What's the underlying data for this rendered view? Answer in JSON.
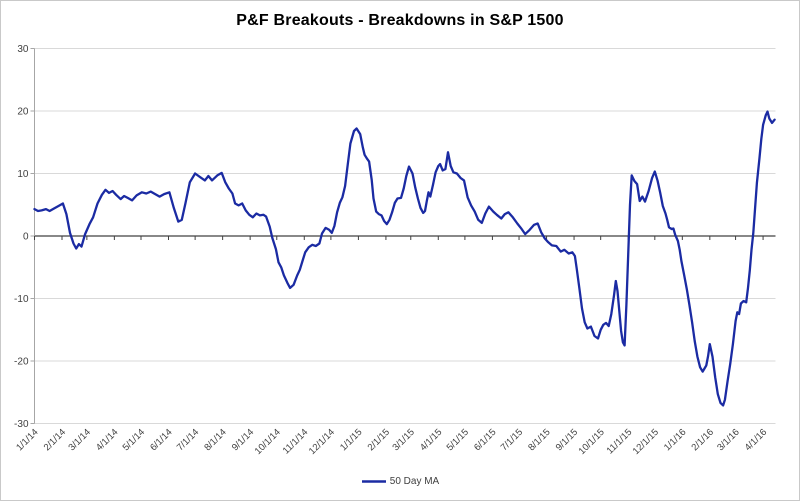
{
  "window": {
    "title": "P&F Breakouts - Breakdowns in S&P 1500"
  },
  "colors": {
    "series_line": "#1B2BA3",
    "gridline": "#D9D9D9",
    "zero_axis": "#404040",
    "axis_line": "#A6A6A6",
    "label_text": "#404040",
    "background": "#FFFFFF",
    "border": "#C9C9C9"
  },
  "chart_data": {
    "type": "line",
    "title": "P&F Breakouts - Breakdowns in S&P 1500",
    "xlabel": "",
    "ylabel": "",
    "ylim": [
      -30,
      30
    ],
    "yticks": [
      30,
      20,
      10,
      0,
      -10,
      -20,
      -30
    ],
    "grid": "horizontal",
    "zero_line": true,
    "legend_position": "bottom",
    "x_tick_labels": [
      "1/1/14",
      "2/1/14",
      "3/1/14",
      "4/1/14",
      "5/1/14",
      "6/1/14",
      "7/1/14",
      "8/1/14",
      "9/1/14",
      "10/1/14",
      "11/1/14",
      "12/1/14",
      "1/1/15",
      "2/1/15",
      "3/1/15",
      "4/1/15",
      "5/1/15",
      "6/1/15",
      "7/1/15",
      "8/1/15",
      "9/1/15",
      "10/1/15",
      "11/1/15",
      "12/1/15",
      "1/1/16",
      "2/1/16",
      "3/1/16",
      "4/1/16"
    ],
    "x_start": "1/1/14",
    "x_end": "4/15/16",
    "series": [
      {
        "name": "50 Day MA",
        "color": "#1B2BA3",
        "data": [
          [
            "1/1/14",
            4.3
          ],
          [
            "1/5/14",
            4.0
          ],
          [
            "1/9/14",
            4.1
          ],
          [
            "1/14/14",
            4.3
          ],
          [
            "1/18/14",
            4.0
          ],
          [
            "1/23/14",
            4.4
          ],
          [
            "1/28/14",
            4.8
          ],
          [
            "2/2/14",
            5.2
          ],
          [
            "2/6/14",
            3.5
          ],
          [
            "2/10/14",
            0.5
          ],
          [
            "2/14/14",
            -1.2
          ],
          [
            "2/17/14",
            -2.0
          ],
          [
            "2/20/14",
            -1.3
          ],
          [
            "2/23/14",
            -1.7
          ],
          [
            "2/27/14",
            0.3
          ],
          [
            "3/4/14",
            1.9
          ],
          [
            "3/8/14",
            3.0
          ],
          [
            "3/13/14",
            5.2
          ],
          [
            "3/18/14",
            6.6
          ],
          [
            "3/22/14",
            7.4
          ],
          [
            "3/26/14",
            6.9
          ],
          [
            "3/30/14",
            7.2
          ],
          [
            "4/3/14",
            6.6
          ],
          [
            "4/8/14",
            5.9
          ],
          [
            "4/12/14",
            6.4
          ],
          [
            "4/16/14",
            6.1
          ],
          [
            "4/21/14",
            5.7
          ],
          [
            "4/26/14",
            6.5
          ],
          [
            "5/2/14",
            7.0
          ],
          [
            "5/7/14",
            6.8
          ],
          [
            "5/12/14",
            7.1
          ],
          [
            "5/17/14",
            6.7
          ],
          [
            "5/22/14",
            6.3
          ],
          [
            "5/27/14",
            6.7
          ],
          [
            "6/2/14",
            7.0
          ],
          [
            "6/7/14",
            4.5
          ],
          [
            "6/12/14",
            2.3
          ],
          [
            "6/16/14",
            2.6
          ],
          [
            "6/20/14",
            5.2
          ],
          [
            "6/25/14",
            8.6
          ],
          [
            "7/1/14",
            10.0
          ],
          [
            "7/7/14",
            9.4
          ],
          [
            "7/12/14",
            8.9
          ],
          [
            "7/16/14",
            9.6
          ],
          [
            "7/20/14",
            8.9
          ],
          [
            "7/26/14",
            9.7
          ],
          [
            "7/31/14",
            10.1
          ],
          [
            "8/4/14",
            8.6
          ],
          [
            "8/8/14",
            7.6
          ],
          [
            "8/12/14",
            6.8
          ],
          [
            "8/15/14",
            5.2
          ],
          [
            "8/19/14",
            4.9
          ],
          [
            "8/23/14",
            5.2
          ],
          [
            "8/27/14",
            4.1
          ],
          [
            "8/31/14",
            3.4
          ],
          [
            "9/4/14",
            3.0
          ],
          [
            "9/8/14",
            3.6
          ],
          [
            "9/12/14",
            3.3
          ],
          [
            "9/16/14",
            3.4
          ],
          [
            "9/19/14",
            3.1
          ],
          [
            "9/23/14",
            1.5
          ],
          [
            "9/26/14",
            -0.3
          ],
          [
            "9/30/14",
            -2.1
          ],
          [
            "10/3/14",
            -4.2
          ],
          [
            "10/6/14",
            -5.0
          ],
          [
            "10/9/14",
            -6.3
          ],
          [
            "10/13/14",
            -7.5
          ],
          [
            "10/16/14",
            -8.3
          ],
          [
            "10/20/14",
            -7.8
          ],
          [
            "10/24/14",
            -6.3
          ],
          [
            "10/27/14",
            -5.4
          ],
          [
            "10/30/14",
            -4.0
          ],
          [
            "11/2/14",
            -2.6
          ],
          [
            "11/6/14",
            -1.8
          ],
          [
            "11/10/14",
            -1.4
          ],
          [
            "11/14/14",
            -1.6
          ],
          [
            "11/18/14",
            -1.2
          ],
          [
            "11/21/14",
            0.4
          ],
          [
            "11/25/14",
            1.3
          ],
          [
            "11/29/14",
            1.0
          ],
          [
            "12/2/14",
            0.5
          ],
          [
            "12/5/14",
            1.6
          ],
          [
            "12/8/14",
            3.8
          ],
          [
            "12/11/14",
            5.3
          ],
          [
            "12/14/14",
            6.2
          ],
          [
            "12/17/14",
            8.0
          ],
          [
            "12/20/14",
            11.5
          ],
          [
            "12/23/14",
            14.8
          ],
          [
            "12/27/14",
            16.8
          ],
          [
            "12/30/14",
            17.2
          ],
          [
            "1/3/15",
            16.3
          ],
          [
            "1/6/15",
            14.2
          ],
          [
            "1/8/15",
            13.0
          ],
          [
            "1/11/15",
            12.3
          ],
          [
            "1/13/15",
            11.9
          ],
          [
            "1/16/15",
            9.0
          ],
          [
            "1/18/15",
            6.0
          ],
          [
            "1/21/15",
            3.9
          ],
          [
            "1/24/15",
            3.5
          ],
          [
            "1/27/15",
            3.3
          ],
          [
            "1/30/15",
            2.4
          ],
          [
            "2/2/15",
            1.9
          ],
          [
            "2/5/15",
            2.6
          ],
          [
            "2/8/15",
            3.8
          ],
          [
            "2/11/15",
            5.3
          ],
          [
            "2/14/15",
            6.0
          ],
          [
            "2/18/15",
            6.1
          ],
          [
            "2/21/15",
            7.6
          ],
          [
            "2/24/15",
            9.6
          ],
          [
            "2/27/15",
            11.1
          ],
          [
            "3/3/15",
            10.0
          ],
          [
            "3/6/15",
            7.8
          ],
          [
            "3/9/15",
            6.0
          ],
          [
            "3/12/15",
            4.5
          ],
          [
            "3/15/15",
            3.7
          ],
          [
            "3/17/15",
            4.0
          ],
          [
            "3/19/15",
            5.5
          ],
          [
            "3/21/15",
            7.0
          ],
          [
            "3/23/15",
            6.3
          ],
          [
            "3/26/15",
            8.2
          ],
          [
            "3/29/15",
            10.2
          ],
          [
            "4/1/15",
            11.2
          ],
          [
            "4/3/15",
            11.5
          ],
          [
            "4/6/15",
            10.5
          ],
          [
            "4/9/15",
            10.7
          ],
          [
            "4/12/15",
            13.4
          ],
          [
            "4/15/15",
            11.2
          ],
          [
            "4/18/15",
            10.2
          ],
          [
            "4/22/15",
            10.0
          ],
          [
            "4/26/15",
            9.3
          ],
          [
            "4/30/15",
            8.9
          ],
          [
            "5/4/15",
            6.2
          ],
          [
            "5/8/15",
            4.9
          ],
          [
            "5/12/15",
            3.9
          ],
          [
            "5/16/15",
            2.6
          ],
          [
            "5/20/15",
            2.1
          ],
          [
            "5/24/15",
            3.6
          ],
          [
            "5/28/15",
            4.7
          ],
          [
            "6/2/15",
            3.9
          ],
          [
            "6/6/15",
            3.4
          ],
          [
            "6/11/15",
            2.8
          ],
          [
            "6/15/15",
            3.5
          ],
          [
            "6/19/15",
            3.8
          ],
          [
            "6/24/15",
            3.0
          ],
          [
            "6/29/15",
            2.0
          ],
          [
            "7/4/15",
            1.1
          ],
          [
            "7/8/15",
            0.3
          ],
          [
            "7/13/15",
            1.0
          ],
          [
            "7/18/15",
            1.8
          ],
          [
            "7/22/15",
            2.0
          ],
          [
            "7/26/15",
            0.6
          ],
          [
            "7/30/15",
            -0.4
          ],
          [
            "8/3/15",
            -1.0
          ],
          [
            "8/7/15",
            -1.5
          ],
          [
            "8/12/15",
            -1.6
          ],
          [
            "8/17/15",
            -2.5
          ],
          [
            "8/21/15",
            -2.2
          ],
          [
            "8/26/15",
            -2.8
          ],
          [
            "8/30/15",
            -2.6
          ],
          [
            "9/2/15",
            -3.2
          ],
          [
            "9/4/15",
            -5.2
          ],
          [
            "9/7/15",
            -8.4
          ],
          [
            "9/10/15",
            -11.6
          ],
          [
            "9/13/15",
            -13.8
          ],
          [
            "9/16/15",
            -14.8
          ],
          [
            "9/20/15",
            -14.5
          ],
          [
            "9/24/15",
            -16.0
          ],
          [
            "9/28/15",
            -16.4
          ],
          [
            "10/1/15",
            -15.0
          ],
          [
            "10/4/15",
            -14.2
          ],
          [
            "10/7/15",
            -13.9
          ],
          [
            "10/10/15",
            -14.4
          ],
          [
            "10/13/15",
            -12.5
          ],
          [
            "10/16/15",
            -9.5
          ],
          [
            "10/18/15",
            -7.2
          ],
          [
            "10/20/15",
            -8.8
          ],
          [
            "10/22/15",
            -12.0
          ],
          [
            "10/24/15",
            -15.2
          ],
          [
            "10/26/15",
            -17.0
          ],
          [
            "10/28/15",
            -17.5
          ],
          [
            "10/30/15",
            -11.0
          ],
          [
            "11/1/15",
            -3.0
          ],
          [
            "11/3/15",
            5.0
          ],
          [
            "11/5/15",
            9.7
          ],
          [
            "11/8/15",
            8.8
          ],
          [
            "11/11/15",
            8.3
          ],
          [
            "11/14/15",
            5.6
          ],
          [
            "11/17/15",
            6.3
          ],
          [
            "11/20/15",
            5.5
          ],
          [
            "11/24/15",
            7.2
          ],
          [
            "11/28/15",
            9.3
          ],
          [
            "12/1/15",
            10.3
          ],
          [
            "12/4/15",
            8.9
          ],
          [
            "12/7/15",
            7.0
          ],
          [
            "12/10/15",
            4.8
          ],
          [
            "12/13/15",
            3.6
          ],
          [
            "12/15/15",
            2.6
          ],
          [
            "12/17/15",
            1.4
          ],
          [
            "12/20/15",
            1.1
          ],
          [
            "12/22/15",
            1.2
          ],
          [
            "12/24/15",
            0.2
          ],
          [
            "12/27/15",
            -0.8
          ],
          [
            "12/29/15",
            -2.2
          ],
          [
            "12/31/15",
            -4.0
          ],
          [
            "1/3/16",
            -6.2
          ],
          [
            "1/6/16",
            -8.5
          ],
          [
            "1/9/16",
            -11.0
          ],
          [
            "1/12/16",
            -13.8
          ],
          [
            "1/15/16",
            -16.8
          ],
          [
            "1/18/16",
            -19.3
          ],
          [
            "1/21/16",
            -21.0
          ],
          [
            "1/24/16",
            -21.7
          ],
          [
            "1/26/16",
            -21.2
          ],
          [
            "1/28/16",
            -20.7
          ],
          [
            "1/30/16",
            -19.2
          ],
          [
            "2/1/16",
            -17.3
          ],
          [
            "2/4/16",
            -19.3
          ],
          [
            "2/7/16",
            -22.6
          ],
          [
            "2/10/16",
            -25.3
          ],
          [
            "2/13/16",
            -26.7
          ],
          [
            "2/16/16",
            -27.1
          ],
          [
            "2/18/16",
            -26.2
          ],
          [
            "2/21/16",
            -23.2
          ],
          [
            "2/24/16",
            -20.5
          ],
          [
            "2/27/16",
            -17.3
          ],
          [
            "3/1/16",
            -13.6
          ],
          [
            "3/3/16",
            -12.2
          ],
          [
            "3/5/16",
            -12.5
          ],
          [
            "3/7/16",
            -10.8
          ],
          [
            "3/10/16",
            -10.4
          ],
          [
            "3/13/16",
            -10.6
          ],
          [
            "3/15/16",
            -8.3
          ],
          [
            "3/17/16",
            -5.5
          ],
          [
            "3/19/16",
            -2.2
          ],
          [
            "3/21/16",
            0.5
          ],
          [
            "3/23/16",
            4.5
          ],
          [
            "3/25/16",
            8.5
          ],
          [
            "3/28/16",
            12.5
          ],
          [
            "3/30/16",
            15.5
          ],
          [
            "4/1/16",
            17.8
          ],
          [
            "4/4/16",
            19.3
          ],
          [
            "4/6/16",
            19.9
          ],
          [
            "4/8/16",
            18.8
          ],
          [
            "4/11/16",
            18.1
          ],
          [
            "4/14/16",
            18.6
          ]
        ]
      }
    ]
  }
}
